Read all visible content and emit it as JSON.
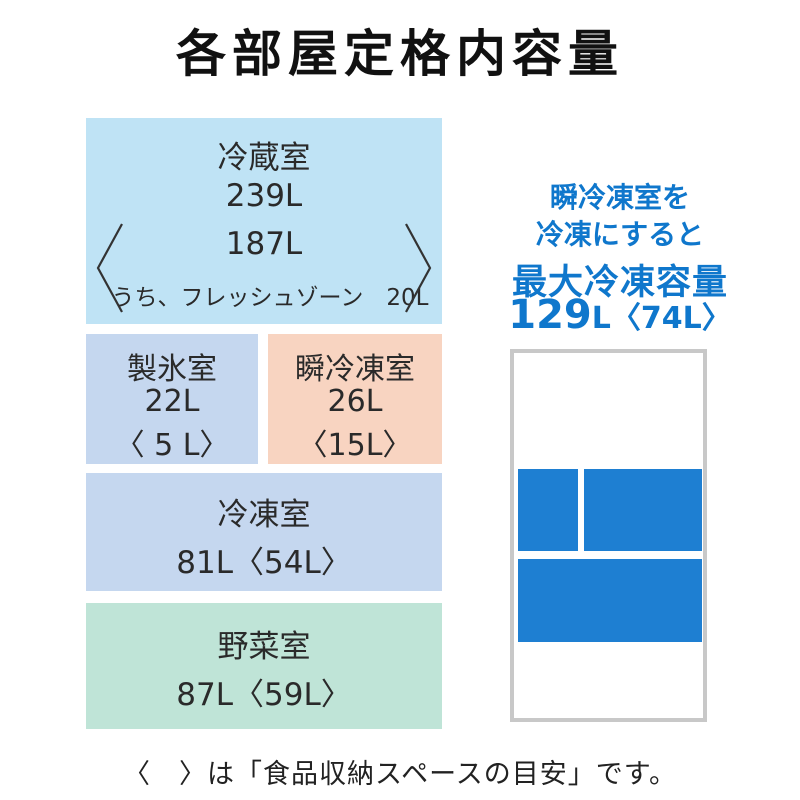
{
  "title": "各部屋定格内容量",
  "compartments": {
    "fridge": {
      "name": "冷蔵室",
      "capacity": "239L",
      "storage": "187L",
      "fresh_zone": "うち、フレッシュゾーン　20L"
    },
    "ice": {
      "name": "製氷室",
      "capacity": "22L",
      "storage": "〈 5 L〉"
    },
    "instant": {
      "name": "瞬冷凍室",
      "capacity": "26L",
      "storage": "〈15L〉"
    },
    "freezer": {
      "name": "冷凍室",
      "capacity": "81L",
      "storage": "〈54L〉"
    },
    "vegetable": {
      "name": "野菜室",
      "capacity": "87L",
      "storage": "〈59L〉"
    }
  },
  "right_panel": {
    "line1": "瞬冷凍室を",
    "line2": "冷凍にすると",
    "max_label": "最大冷凍容量",
    "max_value": "129",
    "max_unit": "L",
    "max_storage": "〈74L〉"
  },
  "footer": "〈　〉は「食品収納スペースの目安」です。",
  "colors": {
    "fridge": "#bfe3f5",
    "ice": "#c5d7ef",
    "instant": "#f8d4c1",
    "freezer": "#c5d7ef",
    "vegetable": "#bfe4d7",
    "accent_blue": "#0f77cc",
    "freezer_block": "#1e7fd2"
  }
}
